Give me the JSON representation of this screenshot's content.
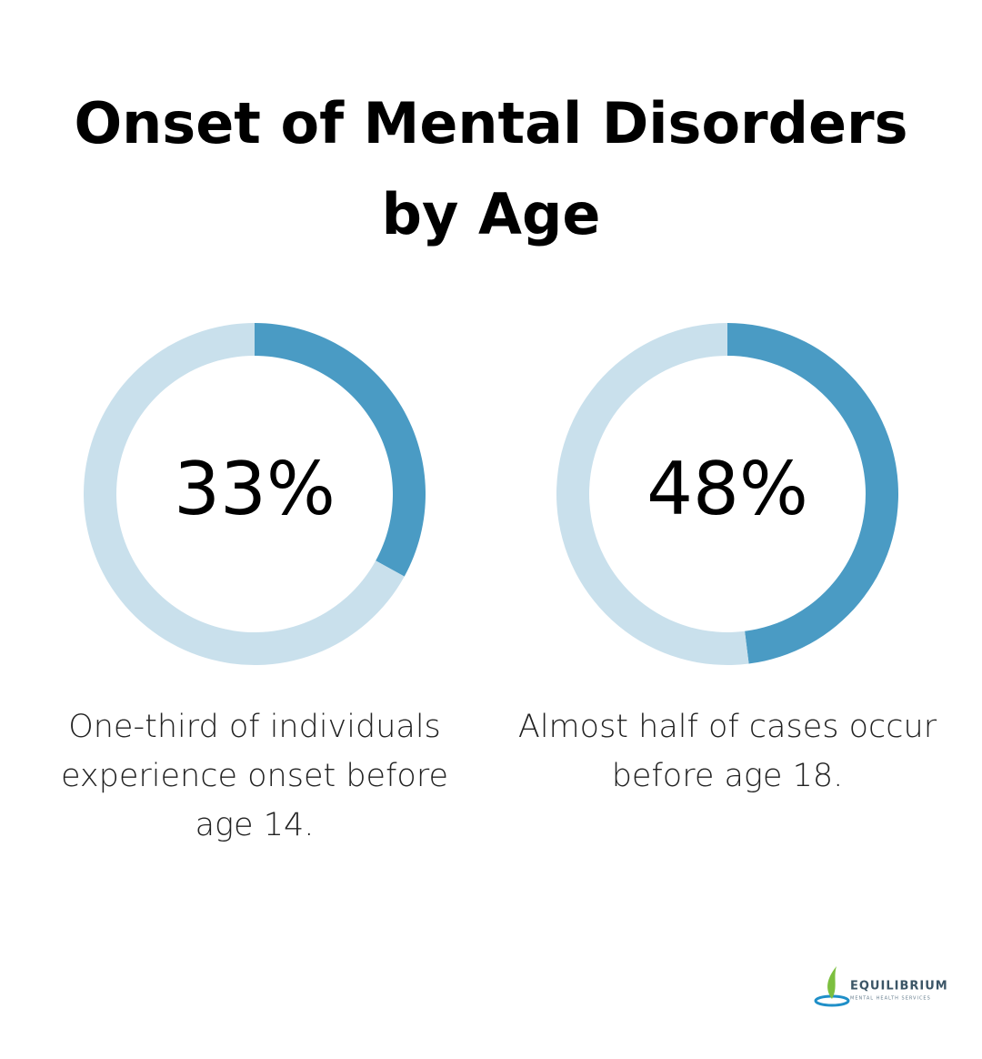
{
  "title": [
    "Onset of Mental Disorders",
    "by Age"
  ],
  "chart_data": [
    {
      "type": "donut",
      "values": [
        33,
        67
      ],
      "value_labels": [
        "33%",
        null
      ],
      "colors": [
        "#4a9bc4",
        "#c9e0ec"
      ],
      "caption": [
        "One-third of individuals",
        "experience onset before",
        "age 14."
      ]
    },
    {
      "type": "donut",
      "values": [
        48,
        52
      ],
      "value_labels": [
        "48%",
        null
      ],
      "colors": [
        "#4a9bc4",
        "#c9e0ec"
      ],
      "caption": [
        "Almost half of cases occur",
        "before age 18."
      ]
    }
  ],
  "logo": {
    "name": "EQUILIBRIUM",
    "tagline": "MENTAL HEALTH SERVICES"
  }
}
